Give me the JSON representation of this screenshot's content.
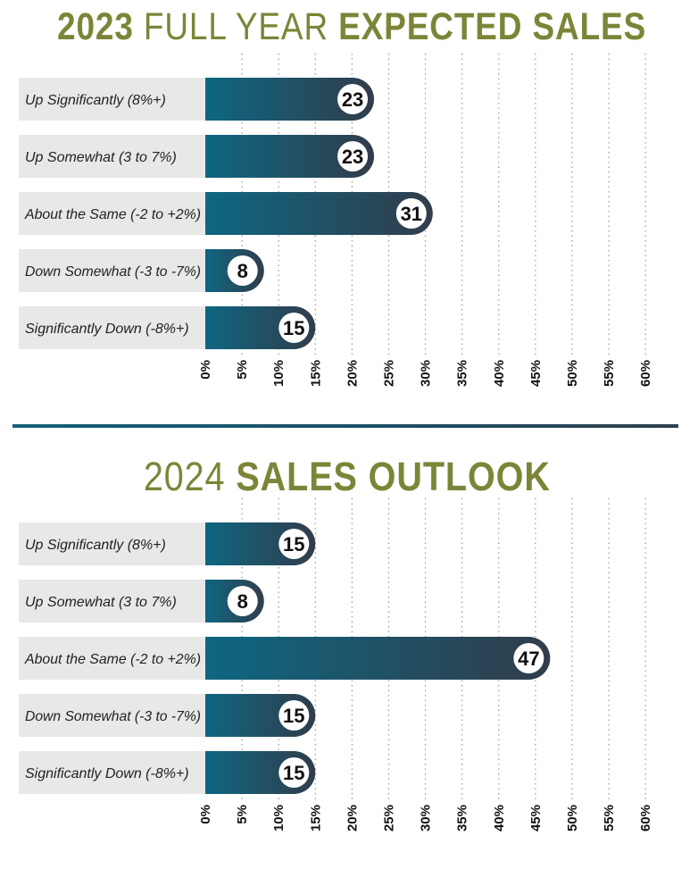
{
  "colors": {
    "title": "#7c8537",
    "label_bg": "#e8e8e8",
    "bar_start": "#0e6681",
    "bar_end": "#313d4b",
    "grid": "#9a9a9a"
  },
  "chart_data": [
    {
      "type": "bar",
      "orientation": "horizontal",
      "title_light_1": "2023",
      "title_light": "FULL YEAR",
      "title_bold": "EXPECTED SALES",
      "categories": [
        "Up Significantly (8%+)",
        "Up Somewhat (3 to 7%)",
        "About the Same (-2 to +2%)",
        "Down Somewhat (-3 to -7%)",
        "Significantly Down (-8%+)"
      ],
      "values": [
        23,
        23,
        31,
        8,
        15
      ],
      "xlim": [
        0,
        60
      ],
      "ticks": [
        "0%",
        "5%",
        "10%",
        "15%",
        "20%",
        "25%",
        "30%",
        "35%",
        "40%",
        "45%",
        "50%",
        "55%",
        "60%"
      ],
      "tick_values": [
        0,
        5,
        10,
        15,
        20,
        25,
        30,
        35,
        40,
        45,
        50,
        55,
        60
      ],
      "grid": true
    },
    {
      "type": "bar",
      "orientation": "horizontal",
      "title_light": "2024",
      "title_bold": "SALES OUTLOOK",
      "categories": [
        "Up Significantly (8%+)",
        "Up Somewhat (3 to 7%)",
        "About the Same (-2 to +2%)",
        "Down Somewhat (-3 to -7%)",
        "Significantly Down (-8%+)"
      ],
      "values": [
        15,
        8,
        47,
        15,
        15
      ],
      "xlim": [
        0,
        60
      ],
      "ticks": [
        "0%",
        "5%",
        "10%",
        "15%",
        "20%",
        "25%",
        "30%",
        "35%",
        "40%",
        "45%",
        "50%",
        "55%",
        "60%"
      ],
      "tick_values": [
        0,
        5,
        10,
        15,
        20,
        25,
        30,
        35,
        40,
        45,
        50,
        55,
        60
      ],
      "grid": true
    }
  ]
}
